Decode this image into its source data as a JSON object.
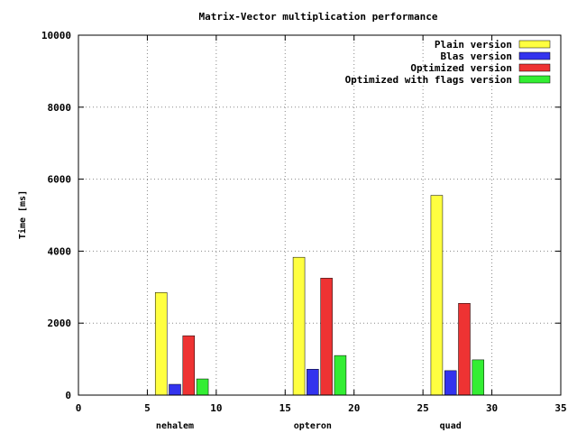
{
  "chart_data": {
    "type": "bar",
    "title": "Matrix-Vector multiplication performance",
    "xlabel": "",
    "ylabel": "Time [ms]",
    "xlim": [
      0,
      35
    ],
    "ylim": [
      0,
      10000
    ],
    "xticks": [
      0,
      5,
      10,
      15,
      20,
      25,
      30,
      35
    ],
    "yticks": [
      0,
      2000,
      4000,
      6000,
      8000,
      10000
    ],
    "grid": true,
    "legend_position": "top-right",
    "categories": [
      {
        "label": "nehalem",
        "x": 7
      },
      {
        "label": "opteron",
        "x": 17
      },
      {
        "label": "quad",
        "x": 27
      }
    ],
    "series": [
      {
        "name": "Plain version",
        "color": "#ffff40",
        "x": [
          6,
          16,
          26
        ],
        "values": [
          2850,
          3830,
          5550
        ]
      },
      {
        "name": "Blas version",
        "color": "#3333ee",
        "x": [
          7,
          17,
          27
        ],
        "values": [
          300,
          720,
          680
        ]
      },
      {
        "name": "Optimized version",
        "color": "#ee3333",
        "x": [
          8,
          18,
          28
        ],
        "values": [
          1650,
          3250,
          2550
        ]
      },
      {
        "name": "Optimized with flags version",
        "color": "#33ee33",
        "x": [
          9,
          19,
          29
        ],
        "values": [
          450,
          1100,
          980
        ]
      }
    ]
  }
}
